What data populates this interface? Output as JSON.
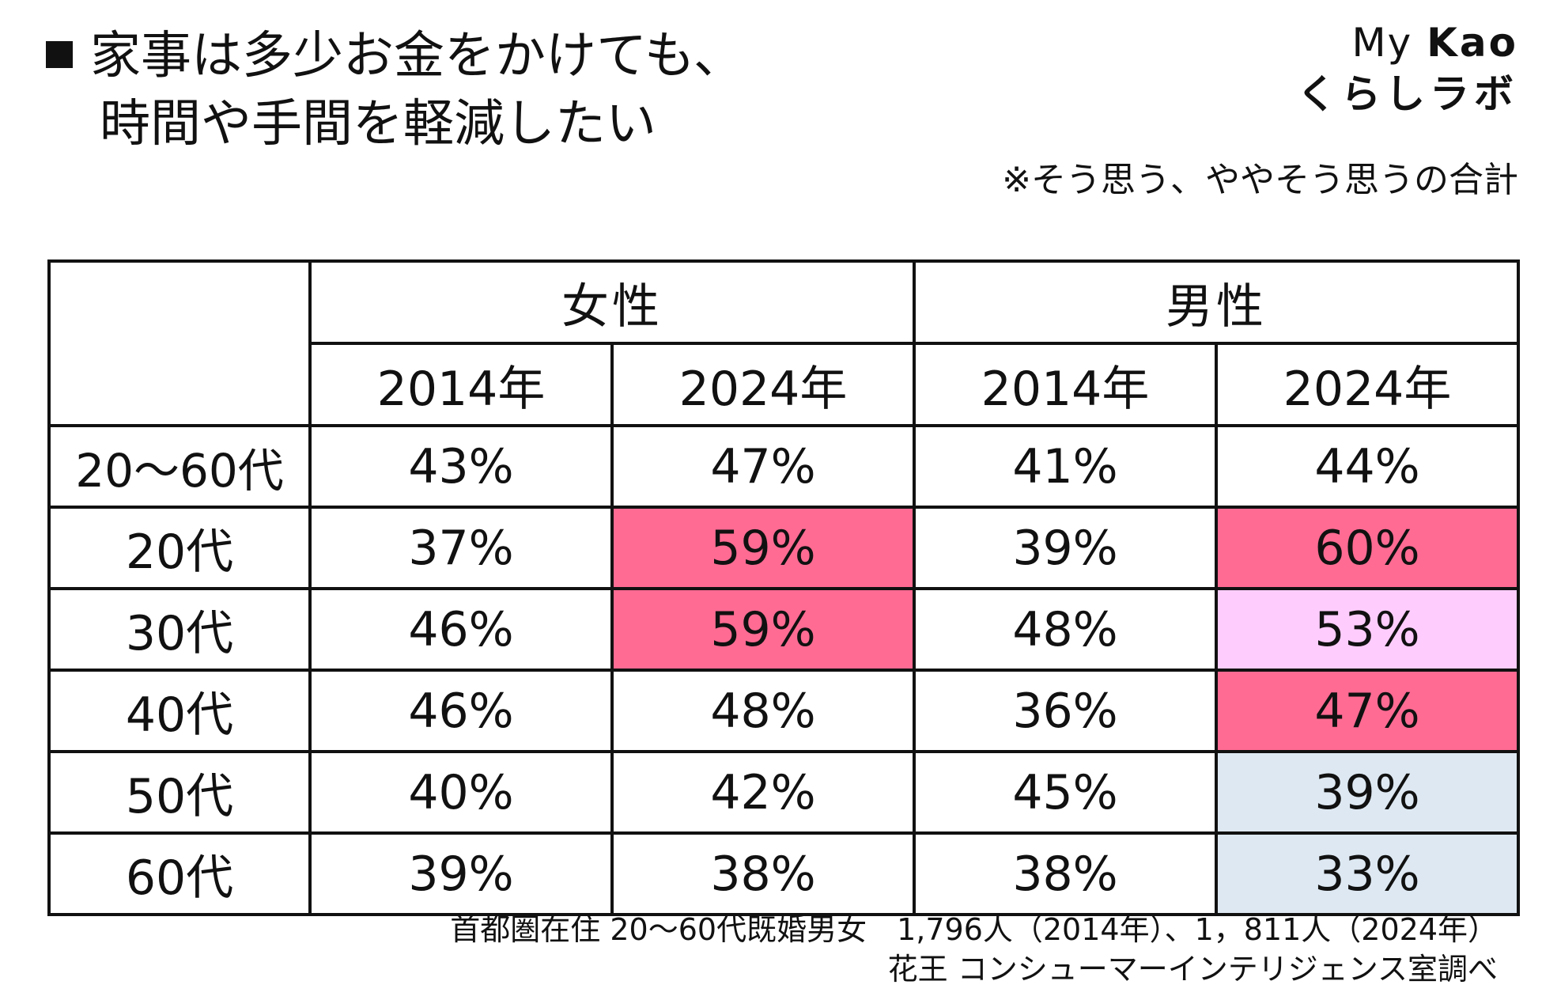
{
  "header": {
    "title_line1": "家事は多少お金をかけても、",
    "title_line2": "時間や手間を軽減したい",
    "logo_line1_a": "My",
    "logo_line1_b": "Kao",
    "logo_line2": "くらしラボ",
    "note": "※そう思う、ややそう思うの合計"
  },
  "chart_data": {
    "type": "table",
    "groups": [
      "女性",
      "男性"
    ],
    "years": [
      "2014年",
      "2024年",
      "2014年",
      "2024年"
    ],
    "rows": [
      {
        "label": "20～60代",
        "values": [
          "43%",
          "47%",
          "41%",
          "44%"
        ],
        "highlight": [
          "",
          "",
          "",
          ""
        ]
      },
      {
        "label": "20代",
        "values": [
          "37%",
          "59%",
          "39%",
          "60%"
        ],
        "highlight": [
          "",
          "#ff6b93",
          "",
          "#ff6b93"
        ]
      },
      {
        "label": "30代",
        "values": [
          "46%",
          "59%",
          "48%",
          "53%"
        ],
        "highlight": [
          "",
          "#ff6b93",
          "",
          "#ffcdfd"
        ]
      },
      {
        "label": "40代",
        "values": [
          "46%",
          "48%",
          "36%",
          "47%"
        ],
        "highlight": [
          "",
          "",
          "",
          "#ff6b93"
        ]
      },
      {
        "label": "50代",
        "values": [
          "40%",
          "42%",
          "45%",
          "39%"
        ],
        "highlight": [
          "",
          "",
          "",
          "#dde8f2"
        ]
      },
      {
        "label": "60代",
        "values": [
          "39%",
          "38%",
          "38%",
          "33%"
        ],
        "highlight": [
          "",
          "",
          "",
          "#dde8f2"
        ]
      }
    ]
  },
  "footer": {
    "line1": "首都圏在住 20～60代既婚男女　1,796人（2014年）、1，811人（2024年）",
    "line2": "花王 コンシューマーインテリジェンス室調べ"
  }
}
